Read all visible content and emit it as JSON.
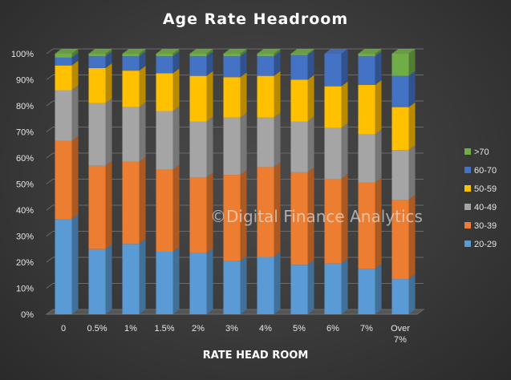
{
  "chart_data": {
    "type": "bar",
    "stacked": true,
    "three_d": true,
    "title": "Age Rate Headroom",
    "xlabel": "RATE HEAD ROOM",
    "ylabel": "",
    "ylim": [
      0,
      100
    ],
    "y_ticks": [
      "0%",
      "10%",
      "20%",
      "30%",
      "40%",
      "50%",
      "60%",
      "70%",
      "80%",
      "90%",
      "100%"
    ],
    "grid": true,
    "legend_position": "right",
    "categories": [
      "0",
      "0.5%",
      "1%",
      "1.5%",
      "2%",
      "3%",
      "4%",
      "5%",
      "6%",
      "7%",
      "Over 7%"
    ],
    "series": [
      {
        "name": "20-29",
        "color": "#5b9bd5",
        "values": [
          36.5,
          25,
          27,
          24,
          23.5,
          20.5,
          22,
          19,
          19.5,
          17.5,
          13.5
        ]
      },
      {
        "name": "30-39",
        "color": "#ed7d31",
        "values": [
          30,
          32,
          31.5,
          31.5,
          29,
          33,
          34.5,
          35.5,
          32.5,
          33,
          30.5
        ]
      },
      {
        "name": "40-49",
        "color": "#a5a5a5",
        "values": [
          19.5,
          24,
          21,
          22.5,
          21.5,
          22,
          19,
          19.5,
          19.5,
          18.5,
          19
        ]
      },
      {
        "name": "50-59",
        "color": "#ffc000",
        "values": [
          9.5,
          13.5,
          14,
          14.5,
          17.5,
          15.5,
          16,
          16,
          16,
          19,
          16.5
        ]
      },
      {
        "name": "60-70",
        "color": "#4472c4",
        "values": [
          3,
          4.5,
          5.5,
          6.5,
          7.5,
          8,
          7.5,
          9.5,
          12.5,
          11,
          12
        ]
      },
      {
        "name": ">70",
        "color": "#70ad47",
        "values": [
          1.5,
          1,
          1,
          1,
          1,
          1,
          1,
          0.5,
          0,
          1,
          8.5
        ]
      }
    ],
    "annotation": "©Digital Finance Analytics"
  }
}
